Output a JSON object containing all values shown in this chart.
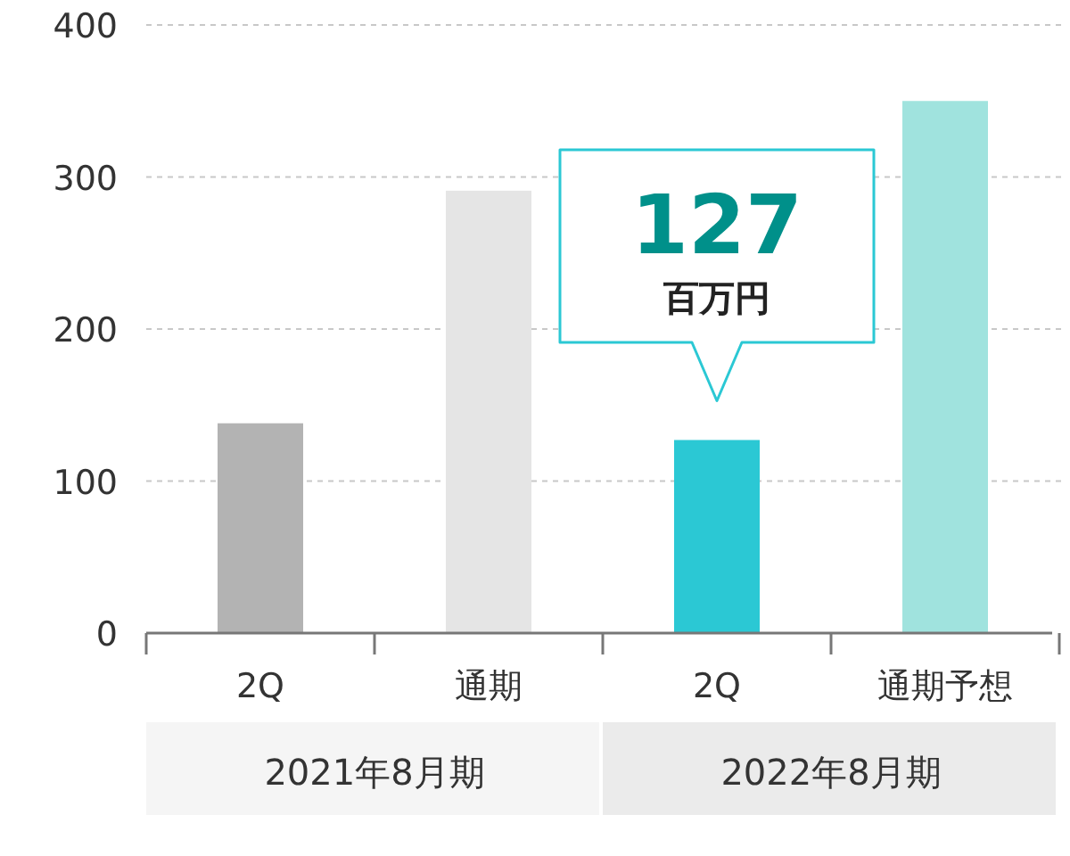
{
  "chart_data": {
    "type": "bar",
    "categories": [
      "2Q",
      "通期",
      "2Q",
      "通期予想"
    ],
    "values": [
      138,
      291,
      127,
      350
    ],
    "colors": [
      "#b3b3b3",
      "#e5e5e5",
      "#2bc8d4",
      "#a0e3de"
    ],
    "value_labels": [
      null,
      null,
      "127",
      null
    ],
    "annotations": [
      "百万円",
      "2021年8月期",
      "2022年8月期"
    ],
    "ylim": [
      0,
      400
    ],
    "yticks": [
      0,
      100,
      200,
      300,
      400
    ],
    "grid": "y"
  }
}
